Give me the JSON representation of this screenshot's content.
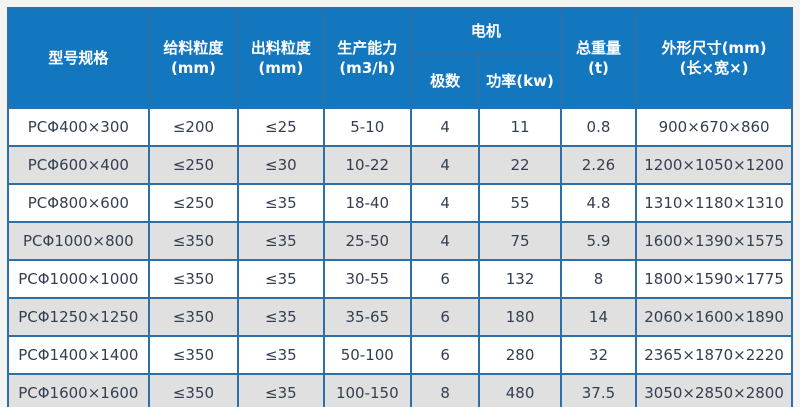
{
  "colors": {
    "header_bg": "#1277bf",
    "header_text": "#ffffff",
    "grid_border": "#2e6fa8",
    "outer_border": "#1b5a96",
    "row_alt_bg": "#e0e0e0",
    "row_bg": "#ffffff",
    "body_text": "#333f50",
    "page_bg": "#f3f3f2"
  },
  "table": {
    "headers": {
      "model": "型号规格",
      "feed_size_l1": "给料粒度",
      "feed_size_l2": "(mm)",
      "output_size_l1": "出料粒度",
      "output_size_l2": "(mm)",
      "capacity_l1": "生产能力",
      "capacity_l2": "(m3/h)",
      "motor_group": "电机",
      "motor_poles": "极数",
      "motor_power": "功率(kw)",
      "weight_l1": "总重量",
      "weight_l2": "(t)",
      "dimensions_l1": "外形尺寸(mm)",
      "dimensions_l2": "(长×宽×)"
    },
    "rows": [
      [
        "PCΦ400×300",
        "≤200",
        "≤25",
        "5-10",
        "4",
        "11",
        "0.8",
        "900×670×860"
      ],
      [
        "PCΦ600×400",
        "≤250",
        "≤30",
        "10-22",
        "4",
        "22",
        "2.26",
        "1200×1050×1200"
      ],
      [
        "PCΦ800×600",
        "≤250",
        "≤35",
        "18-40",
        "4",
        "55",
        "4.8",
        "1310×1180×1310"
      ],
      [
        "PCΦ1000×800",
        "≤350",
        "≤35",
        "25-50",
        "4",
        "75",
        "5.9",
        "1600×1390×1575"
      ],
      [
        "PCΦ1000×1000",
        "≤350",
        "≤35",
        "30-55",
        "6",
        "132",
        "8",
        "1800×1590×1775"
      ],
      [
        "PCΦ1250×1250",
        "≤350",
        "≤35",
        "35-65",
        "6",
        "180",
        "14",
        "2060×1600×1890"
      ],
      [
        "PCΦ1400×1400",
        "≤350",
        "≤35",
        "50-100",
        "6",
        "280",
        "32",
        "2365×1870×2220"
      ],
      [
        "PCΦ1600×1600",
        "≤350",
        "≤35",
        "100-150",
        "8",
        "480",
        "37.5",
        "3050×2850×2800"
      ]
    ]
  }
}
